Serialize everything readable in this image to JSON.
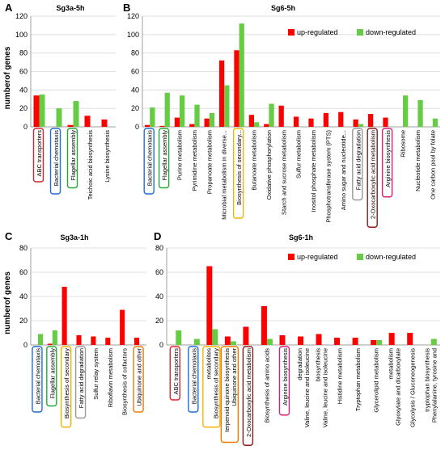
{
  "figure": {
    "ylabel": "numberof genes"
  },
  "legend_labels": {
    "up": "up-regulated",
    "down": "down-regulated"
  },
  "colors": {
    "up": "#ff0000",
    "down": "#66cc44",
    "grid": "#d9d9d9",
    "axis": "#888888",
    "box_blue": "#1f6fd1",
    "box_red": "#e0202a",
    "box_green": "#22aa33",
    "box_yellow": "#f0b400",
    "box_gray": "#999999",
    "box_darkred": "#8b1a1a",
    "box_magenta": "#d6207a",
    "box_orange": "#f07800"
  },
  "chart_data": [
    {
      "panel": "A",
      "title": "Sg3a-5h",
      "type": "bar",
      "ylim": [
        0,
        120
      ],
      "yticks": [
        0,
        20,
        40,
        60,
        80,
        100,
        120
      ],
      "ylabel": "numberof genes",
      "legend": false,
      "categories": [
        "ABC transporters",
        "Bacterial chemotaxis",
        "Flagellar assembly",
        "Teichoic acid biosynthesis",
        "Lysine biosynthesis"
      ],
      "series": [
        {
          "name": "up-regulated",
          "values": [
            34,
            0,
            2,
            12,
            8
          ]
        },
        {
          "name": "down-regulated",
          "values": [
            35,
            20,
            28,
            0,
            0
          ]
        }
      ],
      "boxes": [
        [
          "ABC transporters",
          "red"
        ],
        [
          "Bacterial chemotaxis",
          "blue"
        ],
        [
          "Flagellar assembly",
          "green"
        ]
      ]
    },
    {
      "panel": "B",
      "title": "Sg6-5h",
      "type": "bar",
      "ylim": [
        0,
        120
      ],
      "yticks": [
        0,
        20,
        40,
        60,
        80,
        100,
        120
      ],
      "legend": true,
      "legend_position": "top-right",
      "categories": [
        "Bacterial chemotaxis",
        "Flagellar assembly",
        "Purine metabolism",
        "Pyrimidine metabolism",
        "Propanoate metabolism",
        "Microbial metabolism in diverse...",
        "Biosynthesis of secondary...",
        "Butanoate metabolism",
        "Oxidative phosphorylation",
        "Starch and sucrose metabolism",
        "Sulfur metabolism",
        "Inositol phosphate metabolism",
        "Phosphotransferase system (PTS)",
        "Amino sugar and nucleotide...",
        "Fatty acid degradation",
        "2-Oxocarboxylic acid metabolism",
        "Arginine biosynthesis",
        "Ribosome",
        "Nucleotide metabolism",
        "One carbon pool by folate"
      ],
      "series": [
        {
          "name": "up-regulated",
          "values": [
            2,
            1,
            10,
            3,
            9,
            72,
            83,
            13,
            3,
            23,
            11,
            9,
            15,
            16,
            8,
            14,
            10,
            0,
            0,
            0
          ]
        },
        {
          "name": "down-regulated",
          "values": [
            21,
            37,
            34,
            24,
            15,
            45,
            112,
            5,
            25,
            0,
            0,
            0,
            0,
            0,
            3,
            0,
            0,
            34,
            29,
            9
          ]
        }
      ],
      "boxes": [
        [
          "Bacterial chemotaxis",
          "blue"
        ],
        [
          "Flagellar assembly",
          "green"
        ],
        [
          "Biosynthesis of secondary...",
          "yellow"
        ],
        [
          "Fatty acid degradation",
          "gray"
        ],
        [
          "2-Oxocarboxylic acid metabolism",
          "darkred"
        ],
        [
          "Arginine biosynthesis",
          "magenta"
        ]
      ]
    },
    {
      "panel": "C",
      "title": "Sg3a-1h",
      "type": "bar",
      "ylim": [
        0,
        80
      ],
      "yticks": [
        0,
        20,
        40,
        60,
        80
      ],
      "ylabel": "numberof genes",
      "legend": false,
      "categories": [
        "Bacterial chemotaxis",
        "Flagellar assembly",
        "Biosynthesis of secondary",
        "Fatty acid degradation",
        "Sulfur relay system",
        "Riboflavin metabolism",
        "Biosynthesis of cofactors",
        "Ubiquinone and other"
      ],
      "series": [
        {
          "name": "up-regulated",
          "values": [
            0,
            1,
            48,
            8,
            7,
            6,
            29,
            6
          ]
        },
        {
          "name": "down-regulated",
          "values": [
            9,
            12,
            0,
            0,
            0,
            0,
            0,
            0
          ]
        }
      ],
      "boxes": [
        [
          "Bacterial chemotaxis",
          "blue"
        ],
        [
          "Flagellar assembly",
          "green"
        ],
        [
          "Biosynthesis of secondary",
          "yellow"
        ],
        [
          "Fatty acid degradation",
          "gray"
        ],
        [
          "Ubiquinone and other",
          "orange"
        ]
      ]
    },
    {
      "panel": "D",
      "title": "Sg6-1h",
      "type": "bar",
      "ylim": [
        0,
        80
      ],
      "yticks": [
        0,
        20,
        40,
        60,
        80
      ],
      "legend": true,
      "legend_position": "top-right",
      "categories": [
        "ABC transporters",
        "Bacterial chemotaxis",
        "Biosynthesis of secondary metabolites",
        "Ubiquinone and other terpenoid-quinone biosynthesis",
        "2-Oxocarboxylic acid metabolism",
        "Biosynthesis of amino acids",
        "Arginine biosynthesis",
        "Valine, leucine and isoleucine degradation",
        "Valine, leucine and isoleucine biosynthesis",
        "Histidine metabolism",
        "Tryptophan metabolism",
        "Glycerolipid metabolism",
        "Glyoxylate and dicarboxylate metabolism",
        "Glycolysis / Gluconeogenesis",
        "Phenylalanine, tyrosine and tryptophan biosynthesis"
      ],
      "series": [
        {
          "name": "up-regulated",
          "values": [
            0,
            0,
            65,
            7,
            15,
            32,
            8,
            7,
            9,
            6,
            6,
            4,
            10,
            10,
            0
          ]
        },
        {
          "name": "down-regulated",
          "values": [
            12,
            5,
            13,
            3,
            0,
            5,
            0,
            0,
            0,
            0,
            0,
            4,
            0,
            0,
            5
          ]
        }
      ],
      "boxes": [
        [
          "ABC transporters",
          "red"
        ],
        [
          "Bacterial chemotaxis",
          "blue"
        ],
        [
          "Biosynthesis of secondary metabolites",
          "yellow"
        ],
        [
          "Ubiquinone and other terpenoid-quinone biosynthesis",
          "orange"
        ],
        [
          "2-Oxocarboxylic acid metabolism",
          "darkred"
        ],
        [
          "Arginine biosynthesis",
          "magenta"
        ]
      ]
    }
  ]
}
